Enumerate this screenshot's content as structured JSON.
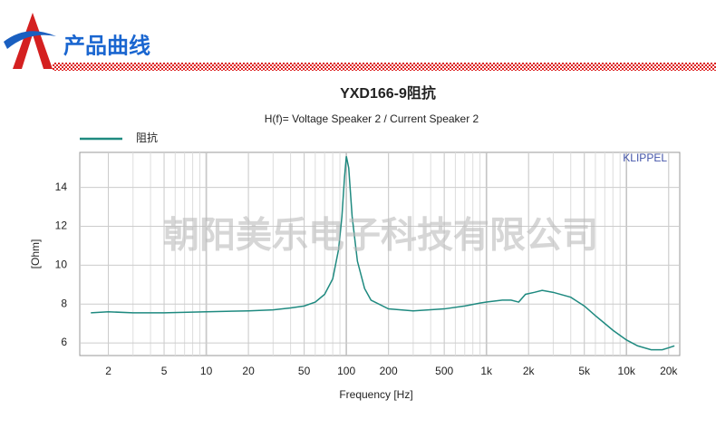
{
  "header": {
    "title": "产品曲线"
  },
  "chart_data": {
    "type": "line",
    "title": "YXD166-9阻抗",
    "subtitle": "H(f)= Voltage Speaker 2 / Current Speaker 2",
    "x_label": "Frequency [Hz]",
    "y_label": "[Ohm]",
    "brand": "KLIPPEL",
    "watermark": "朝阳美乐电子科技有限公司",
    "x_scale": "log",
    "grid": true,
    "xlim": [
      1.25,
      24000
    ],
    "ylim": [
      5.35,
      15.8
    ],
    "xticks": [
      2,
      5,
      10,
      20,
      50,
      100,
      200,
      500,
      {
        "value": 1000,
        "label": "1k"
      },
      {
        "value": 2000,
        "label": "2k"
      },
      {
        "value": 5000,
        "label": "5k"
      },
      {
        "value": 10000,
        "label": "10k"
      },
      {
        "value": 20000,
        "label": "20k"
      }
    ],
    "yticks": [
      6,
      8,
      10,
      12,
      14
    ],
    "x": [
      1.5,
      2,
      3,
      5,
      10,
      20,
      30,
      40,
      50,
      60,
      70,
      80,
      88,
      93,
      97,
      100,
      104,
      110,
      120,
      135,
      150,
      200,
      300,
      500,
      700,
      900,
      1000,
      1300,
      1500,
      1700,
      1900,
      2200,
      2500,
      3000,
      4000,
      5000,
      6000,
      7000,
      8000,
      10000,
      12000,
      15000,
      18000,
      20000,
      22000
    ],
    "series": [
      {
        "name": "阻抗",
        "color": "#1f8a80",
        "values": [
          7.55,
          7.6,
          7.55,
          7.55,
          7.6,
          7.65,
          7.7,
          7.8,
          7.9,
          8.1,
          8.5,
          9.3,
          10.8,
          12.5,
          14.5,
          15.6,
          15.0,
          12.5,
          10.2,
          8.8,
          8.2,
          7.75,
          7.65,
          7.75,
          7.9,
          8.05,
          8.1,
          8.2,
          8.2,
          8.1,
          8.5,
          8.6,
          8.7,
          8.6,
          8.35,
          7.9,
          7.4,
          7.0,
          6.65,
          6.15,
          5.85,
          5.65,
          5.65,
          5.75,
          5.85
        ]
      }
    ]
  }
}
